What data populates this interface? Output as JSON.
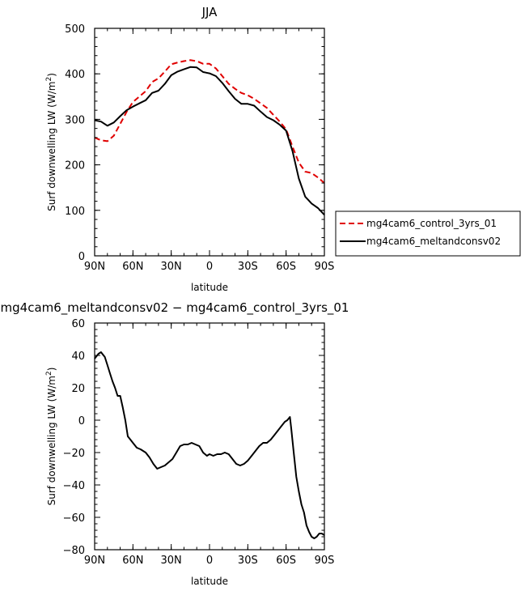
{
  "chart_data": [
    {
      "type": "line",
      "title": "JJA",
      "xlabel": "latitude",
      "ylabel": "Surf downwelling LW (W/m",
      "ylabel_sup": "2",
      "ylabel_tail": ")",
      "xlim": [
        90,
        -90
      ],
      "ylim": [
        0,
        500
      ],
      "xticks": [
        90,
        60,
        30,
        0,
        -30,
        -60,
        -90
      ],
      "xtick_labels": [
        "90N",
        "60N",
        "30N",
        "0",
        "30S",
        "60S",
        "90S"
      ],
      "yticks": [
        0,
        100,
        200,
        300,
        400,
        500
      ],
      "ytick_labels": [
        "0",
        "100",
        "200",
        "300",
        "400",
        "500"
      ],
      "legend_position": "right",
      "series": [
        {
          "name": "mg4cam6_control_3yrs_01",
          "color": "#e00000",
          "dash": "dashed",
          "x": [
            90,
            85,
            80,
            75,
            70,
            65,
            60,
            55,
            50,
            45,
            40,
            35,
            30,
            25,
            20,
            15,
            10,
            5,
            0,
            -5,
            -10,
            -15,
            -20,
            -25,
            -30,
            -35,
            -40,
            -45,
            -50,
            -55,
            -60,
            -65,
            -70,
            -75,
            -80,
            -85,
            -90
          ],
          "values": [
            260,
            254,
            252,
            264,
            290,
            316,
            338,
            350,
            362,
            382,
            390,
            405,
            421,
            425,
            428,
            430,
            428,
            422,
            422,
            412,
            395,
            378,
            367,
            358,
            353,
            345,
            335,
            325,
            310,
            295,
            278,
            240,
            205,
            185,
            182,
            172,
            160
          ]
        },
        {
          "name": "mg4cam6_meltandconsv02",
          "color": "#000000",
          "dash": "solid",
          "x": [
            90,
            85,
            80,
            75,
            70,
            65,
            60,
            55,
            50,
            45,
            40,
            35,
            30,
            25,
            20,
            15,
            10,
            5,
            0,
            -5,
            -10,
            -15,
            -20,
            -25,
            -30,
            -35,
            -40,
            -45,
            -50,
            -55,
            -60,
            -65,
            -70,
            -75,
            -80,
            -85,
            -90
          ],
          "values": [
            298,
            295,
            286,
            293,
            307,
            320,
            328,
            335,
            342,
            358,
            363,
            378,
            397,
            405,
            410,
            415,
            414,
            404,
            401,
            395,
            380,
            362,
            345,
            334,
            334,
            330,
            317,
            305,
            298,
            288,
            275,
            230,
            170,
            130,
            115,
            105,
            90
          ]
        }
      ]
    },
    {
      "type": "line",
      "title": "mg4cam6_meltandconsv02 − mg4cam6_control_3yrs_01",
      "xlabel": "latitude",
      "ylabel": "Surf downwelling LW (W/m",
      "ylabel_sup": "2",
      "ylabel_tail": ")",
      "xlim": [
        90,
        -90
      ],
      "ylim": [
        -80,
        60
      ],
      "xticks": [
        90,
        60,
        30,
        0,
        -30,
        -60,
        -90
      ],
      "xtick_labels": [
        "90N",
        "60N",
        "30N",
        "0",
        "30S",
        "60S",
        "90S"
      ],
      "yticks": [
        -80,
        -60,
        -40,
        -20,
        0,
        20,
        40,
        60
      ],
      "ytick_labels": [
        "−80",
        "−60",
        "−40",
        "−20",
        "0",
        "20",
        "40",
        "60"
      ],
      "series": [
        {
          "color": "#000000",
          "dash": "solid",
          "x": [
            90,
            87,
            85,
            82,
            80,
            78,
            76,
            74,
            72,
            70,
            68,
            66,
            64,
            62,
            60,
            57,
            54,
            50,
            47,
            44,
            41,
            38,
            35,
            32,
            29,
            26,
            23,
            20,
            17,
            14,
            11,
            8,
            5,
            2,
            0,
            -3,
            -6,
            -9,
            -12,
            -15,
            -18,
            -21,
            -24,
            -27,
            -30,
            -33,
            -36,
            -39,
            -42,
            -45,
            -48,
            -51,
            -54,
            -57,
            -59,
            -61,
            -62,
            -63,
            -64,
            -66,
            -68,
            -70,
            -72,
            -74,
            -76,
            -78,
            -80,
            -82,
            -84,
            -86,
            -88,
            -90
          ],
          "values": [
            38,
            41,
            42,
            39,
            34,
            29,
            24,
            20,
            15,
            15,
            8,
            0,
            -10,
            -12,
            -14,
            -17,
            -18,
            -20,
            -23,
            -27,
            -30,
            -29,
            -28,
            -26,
            -24,
            -20,
            -16,
            -15,
            -15,
            -14,
            -15,
            -16,
            -20,
            -22,
            -21,
            -22,
            -21,
            -21,
            -20,
            -21,
            -24,
            -27,
            -28,
            -27,
            -25,
            -22,
            -19,
            -16,
            -14,
            -14,
            -12,
            -9,
            -6,
            -3,
            -1,
            0,
            1,
            2,
            -5,
            -20,
            -35,
            -44,
            -52,
            -57,
            -65,
            -69,
            -72,
            -73,
            -72,
            -70,
            -70,
            -71
          ]
        }
      ]
    }
  ]
}
